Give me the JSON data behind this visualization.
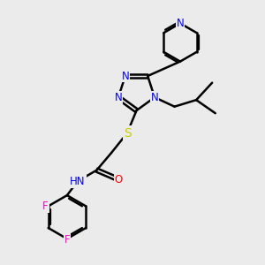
{
  "bg_color": "#ebebeb",
  "bond_color": "#000000",
  "bond_width": 1.8,
  "atom_colors": {
    "N": "#0000FF",
    "O": "#FF0000",
    "S": "#CCCC00",
    "F": "#FF00CC",
    "C": "#000000"
  },
  "font_size": 8.5,
  "dbo": 0.07
}
